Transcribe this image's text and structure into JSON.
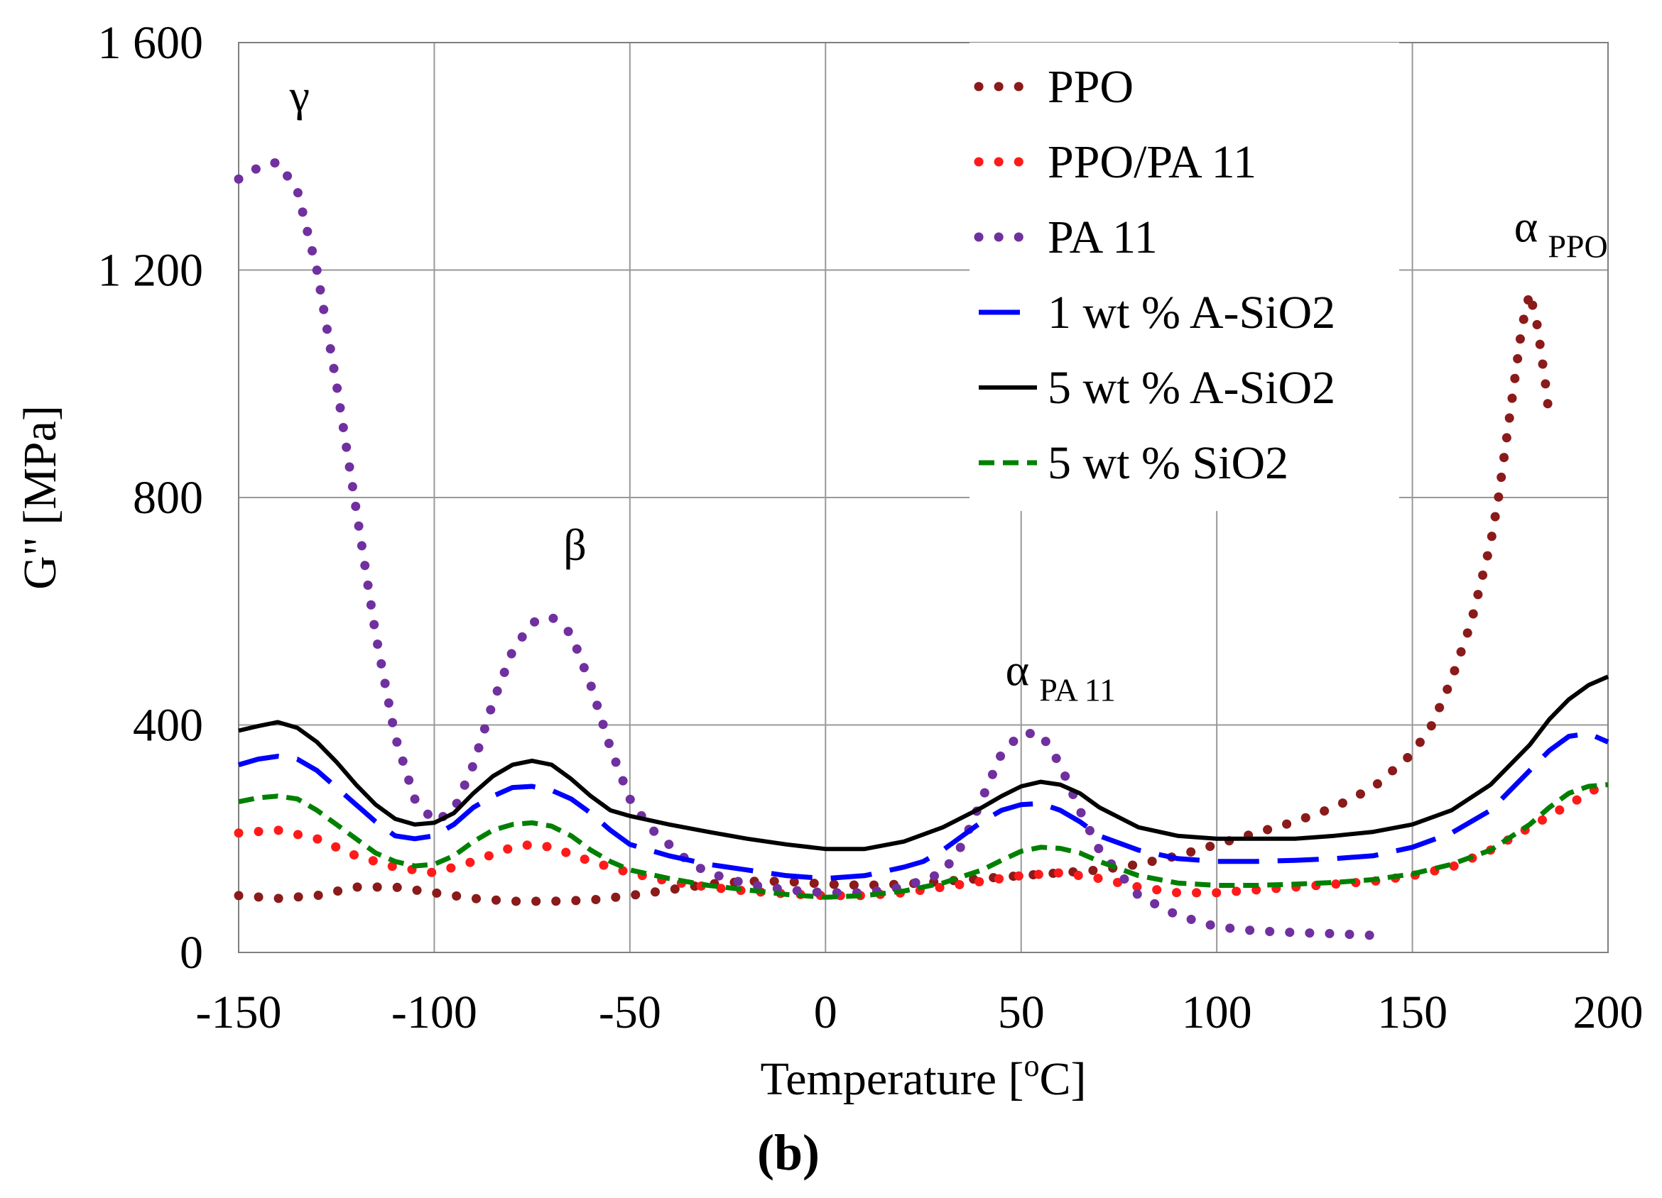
{
  "chart_data": {
    "type": "line",
    "title": "",
    "xlabel": "Temperature [°C]",
    "xlabel_parts": [
      "Temperature [",
      "o",
      "C]"
    ],
    "ylabel": "G\" [MPa]",
    "xlim": [
      -150,
      200
    ],
    "ylim": [
      0,
      1600
    ],
    "xticks": [
      -150,
      -100,
      -50,
      0,
      50,
      100,
      150,
      200
    ],
    "xtick_labels": [
      "-150",
      "-100",
      "-50",
      "0",
      "50",
      "100",
      "150",
      "200"
    ],
    "yticks": [
      0,
      400,
      800,
      1200,
      1600
    ],
    "ytick_labels": [
      "0",
      "400",
      "800",
      "1 200",
      "1 600"
    ],
    "grid": true,
    "legend_position": "top-right",
    "panel_label": "(b)",
    "annotations": [
      {
        "id": "gamma",
        "text": "γ",
        "sub": "",
        "x": -137,
        "y": 1480
      },
      {
        "id": "beta",
        "text": "β",
        "sub": "",
        "x": -67,
        "y": 690
      },
      {
        "id": "alpha-pa11",
        "text": "α",
        "sub": "PA 11",
        "x": 46,
        "y": 470
      },
      {
        "id": "alpha-ppo",
        "text": "α",
        "sub": "PPO",
        "x": 176,
        "y": 1250
      }
    ],
    "series": [
      {
        "name": "PPO",
        "color": "#8b1a1a",
        "style": "dotted",
        "x": [
          -150,
          -140,
          -130,
          -120,
          -110,
          -100,
          -90,
          -80,
          -70,
          -60,
          -50,
          -40,
          -30,
          -20,
          -10,
          0,
          10,
          20,
          30,
          40,
          50,
          60,
          70,
          80,
          90,
          100,
          110,
          120,
          130,
          140,
          150,
          155,
          160,
          165,
          170,
          172,
          175,
          178,
          180,
          182,
          184,
          185
        ],
        "y": [
          100,
          95,
          100,
          115,
          115,
          105,
          95,
          90,
          90,
          92,
          100,
          110,
          120,
          125,
          125,
          120,
          118,
          120,
          125,
          130,
          135,
          140,
          145,
          155,
          170,
          190,
          210,
          230,
          255,
          290,
          350,
          400,
          480,
          580,
          720,
          800,
          950,
          1100,
          1160,
          1100,
          1000,
          940
        ]
      },
      {
        "name": "PPO/PA 11",
        "color": "#ff1a1a",
        "style": "dotted",
        "x": [
          -150,
          -140,
          -130,
          -120,
          -110,
          -100,
          -90,
          -80,
          -75,
          -70,
          -60,
          -50,
          -40,
          -30,
          -20,
          -10,
          0,
          10,
          20,
          30,
          40,
          50,
          60,
          70,
          80,
          90,
          100,
          110,
          120,
          130,
          140,
          150,
          160,
          170,
          180,
          190,
          200
        ],
        "y": [
          210,
          215,
          200,
          170,
          150,
          140,
          160,
          185,
          190,
          185,
          160,
          140,
          125,
          115,
          108,
          103,
          100,
          100,
          105,
          115,
          125,
          135,
          140,
          130,
          115,
          105,
          105,
          110,
          115,
          120,
          125,
          135,
          150,
          180,
          220,
          260,
          300
        ]
      },
      {
        "name": "PA 11",
        "color": "#7030a0",
        "style": "dotted",
        "x": [
          -150,
          -145,
          -140,
          -135,
          -130,
          -125,
          -120,
          -115,
          -110,
          -105,
          -100,
          -95,
          -90,
          -85,
          -80,
          -75,
          -70,
          -65,
          -60,
          -55,
          -50,
          -45,
          -40,
          -35,
          -30,
          -20,
          -10,
          0,
          10,
          20,
          30,
          35,
          40,
          45,
          50,
          55,
          60,
          65,
          70,
          75,
          80,
          90,
          100,
          110,
          120,
          130,
          140
        ],
        "y": [
          1360,
          1380,
          1390,
          1340,
          1200,
          1000,
          780,
          560,
          380,
          270,
          230,
          250,
          330,
          440,
          530,
          580,
          590,
          560,
          470,
          360,
          270,
          220,
          190,
          160,
          140,
          120,
          110,
          105,
          105,
          115,
          140,
          190,
          270,
          350,
          385,
          385,
          330,
          250,
          180,
          140,
          100,
          65,
          45,
          38,
          35,
          33,
          30
        ]
      },
      {
        "name": "1 wt % A-SiO2",
        "color": "#0000ff",
        "style": "dashed",
        "x": [
          -150,
          -145,
          -140,
          -135,
          -130,
          -125,
          -120,
          -115,
          -110,
          -105,
          -100,
          -95,
          -90,
          -85,
          -80,
          -75,
          -70,
          -65,
          -60,
          -55,
          -50,
          -40,
          -30,
          -20,
          -10,
          0,
          10,
          20,
          25,
          30,
          35,
          40,
          45,
          50,
          55,
          60,
          65,
          70,
          80,
          90,
          100,
          110,
          120,
          130,
          140,
          150,
          160,
          170,
          180,
          185,
          190,
          195,
          200
        ],
        "y": [
          330,
          340,
          345,
          340,
          320,
          290,
          260,
          230,
          205,
          200,
          205,
          225,
          255,
          275,
          290,
          292,
          285,
          270,
          245,
          215,
          190,
          170,
          155,
          145,
          135,
          130,
          135,
          150,
          160,
          180,
          205,
          230,
          250,
          260,
          262,
          250,
          230,
          205,
          180,
          165,
          160,
          160,
          162,
          165,
          170,
          185,
          210,
          250,
          320,
          355,
          380,
          385,
          370
        ]
      },
      {
        "name": "5 wt % A-SiO2",
        "color": "#000000",
        "style": "solid",
        "x": [
          -150,
          -145,
          -140,
          -135,
          -130,
          -125,
          -120,
          -115,
          -110,
          -105,
          -100,
          -95,
          -90,
          -85,
          -80,
          -75,
          -70,
          -65,
          -60,
          -55,
          -50,
          -40,
          -30,
          -20,
          -10,
          0,
          10,
          20,
          30,
          40,
          45,
          50,
          55,
          60,
          65,
          70,
          80,
          90,
          100,
          110,
          120,
          130,
          140,
          150,
          160,
          170,
          180,
          185,
          190,
          195,
          200
        ],
        "y": [
          390,
          398,
          405,
          395,
          370,
          335,
          295,
          260,
          235,
          225,
          228,
          245,
          280,
          310,
          330,
          337,
          330,
          305,
          275,
          250,
          240,
          225,
          212,
          200,
          190,
          182,
          182,
          195,
          220,
          255,
          275,
          292,
          300,
          295,
          280,
          255,
          220,
          205,
          200,
          200,
          200,
          205,
          212,
          225,
          250,
          295,
          365,
          410,
          445,
          470,
          485
        ]
      },
      {
        "name": "5 wt % SiO2",
        "color": "#008000",
        "style": "shortdash",
        "x": [
          -150,
          -145,
          -140,
          -135,
          -130,
          -125,
          -120,
          -115,
          -110,
          -105,
          -100,
          -95,
          -90,
          -85,
          -80,
          -75,
          -70,
          -65,
          -60,
          -55,
          -50,
          -40,
          -30,
          -20,
          -10,
          0,
          10,
          20,
          30,
          40,
          45,
          50,
          55,
          60,
          65,
          70,
          80,
          90,
          100,
          110,
          120,
          130,
          140,
          150,
          160,
          170,
          180,
          185,
          190,
          195,
          200
        ],
        "y": [
          265,
          272,
          275,
          270,
          250,
          225,
          200,
          175,
          160,
          152,
          155,
          170,
          195,
          215,
          225,
          228,
          222,
          205,
          180,
          160,
          145,
          130,
          118,
          110,
          102,
          97,
          100,
          108,
          122,
          145,
          162,
          178,
          185,
          183,
          175,
          160,
          135,
          122,
          118,
          118,
          120,
          123,
          128,
          138,
          155,
          180,
          225,
          255,
          280,
          292,
          295
        ]
      }
    ]
  }
}
